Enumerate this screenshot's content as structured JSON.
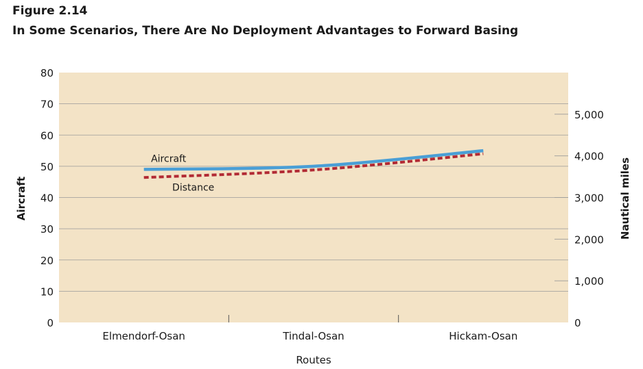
{
  "figure": {
    "number": "Figure 2.14",
    "title": "In Some Scenarios, There Are No Deployment Advantages to Forward Basing"
  },
  "chart_data": {
    "type": "line",
    "categories": [
      "Elmendorf-Osan",
      "Tindal-Osan",
      "Hickam-Osan"
    ],
    "xlabel": "Routes",
    "ylabel": "Aircraft",
    "y2label": "Nautical miles",
    "ylim": [
      0,
      80
    ],
    "yticks": [
      0,
      10,
      20,
      30,
      40,
      50,
      60,
      70,
      80
    ],
    "y2lim": [
      0,
      6000
    ],
    "y2ticks": [
      0,
      1000,
      2000,
      3000,
      4000,
      5000
    ],
    "y2ticklabels": [
      "0",
      "1,000",
      "2,000",
      "3,000",
      "4,000",
      "5,000"
    ],
    "grid": true,
    "series": [
      {
        "name": "Aircraft",
        "axis": "left",
        "values": [
          49,
          50,
          55
        ],
        "color": "#4a9fd6",
        "style": "solid"
      },
      {
        "name": "Distance",
        "axis": "right",
        "values": [
          3480,
          3660,
          4050
        ],
        "color": "#b22a34",
        "style": "dashed"
      }
    ],
    "colors": {
      "plot_background": "#f3e3c6",
      "gridline": "#9a9a9a"
    }
  }
}
